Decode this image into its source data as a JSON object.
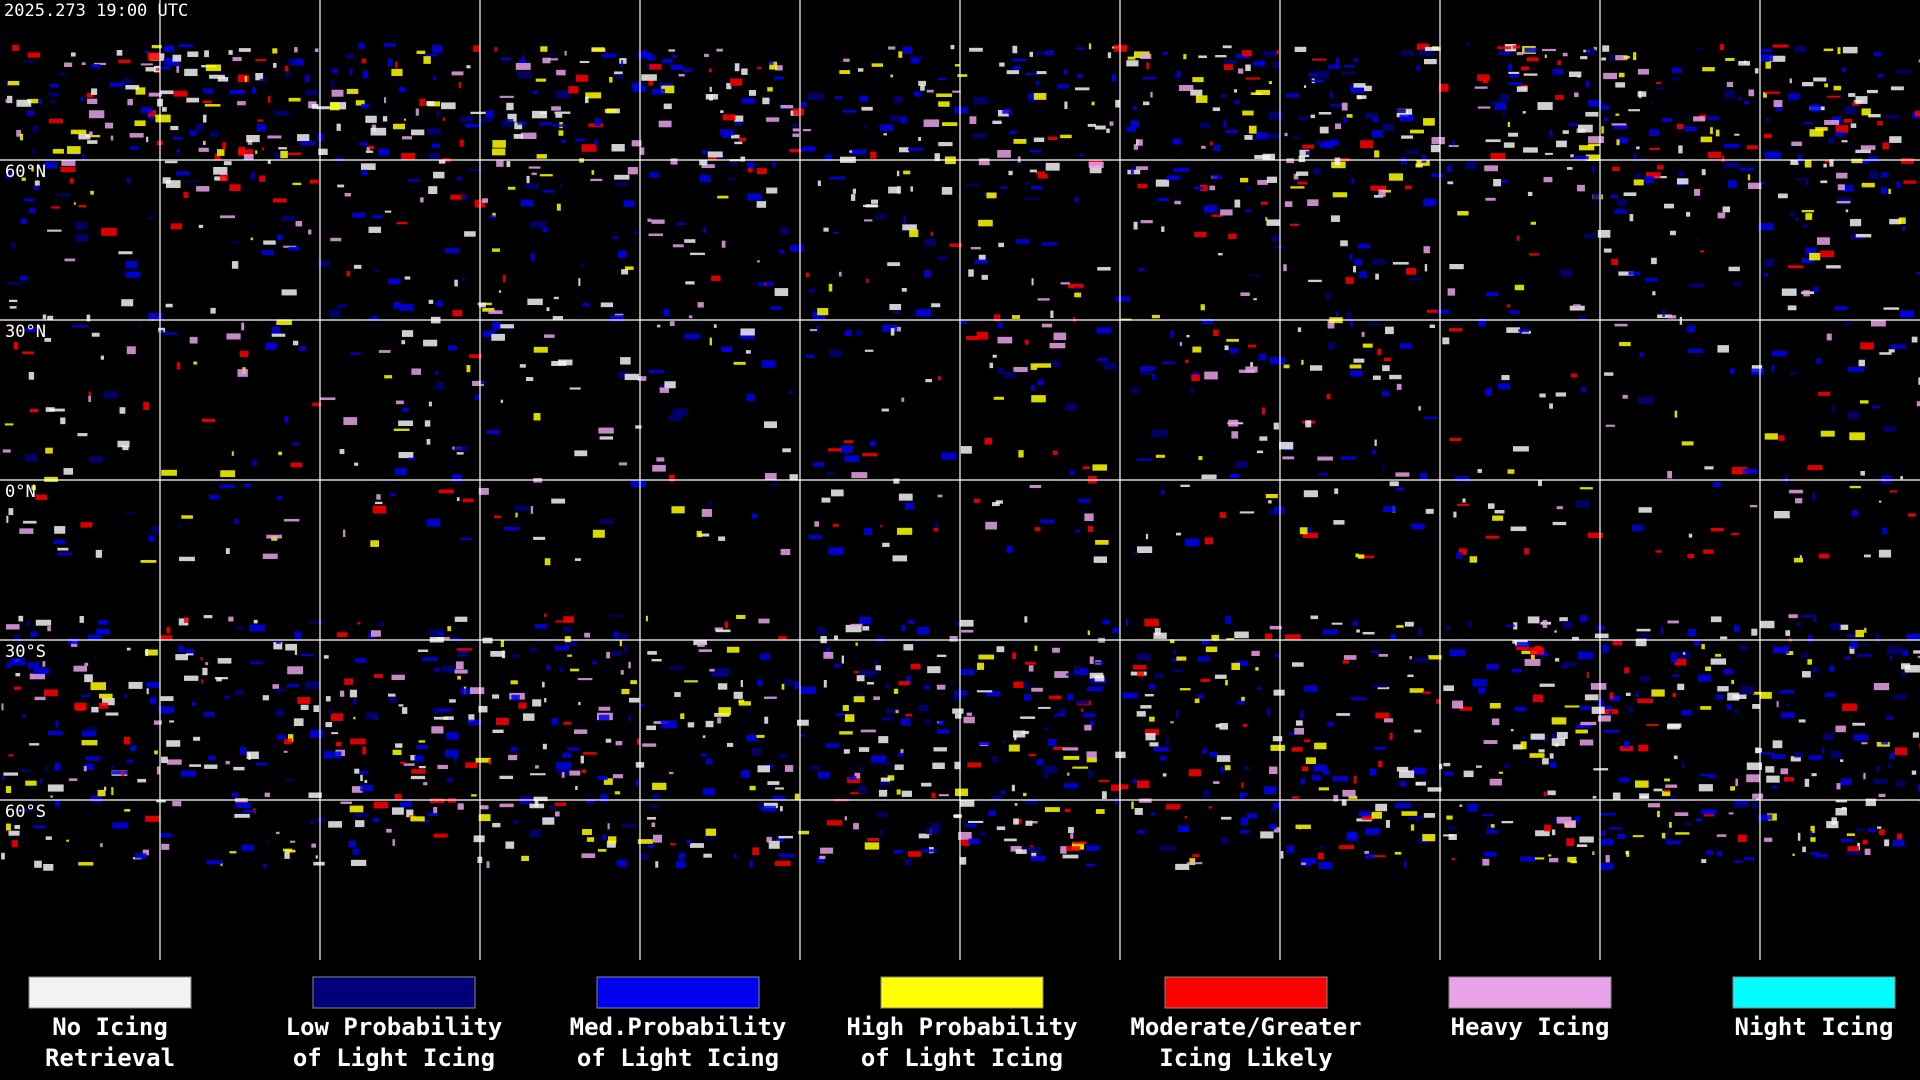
{
  "timestamp": "2025.273 19:00 UTC",
  "map": {
    "lat_lines": [
      {
        "value": 60,
        "label": "60°N"
      },
      {
        "value": 30,
        "label": "30°N"
      },
      {
        "value": 0,
        "label": "0°N"
      },
      {
        "value": -30,
        "label": "30°S"
      },
      {
        "value": -60,
        "label": "60°S"
      }
    ],
    "lon_lines": [
      -150,
      -120,
      -90,
      -60,
      -30,
      0,
      30,
      60,
      90,
      120,
      150
    ]
  },
  "legend": [
    {
      "lines": [
        "No Icing",
        "Retrieval"
      ],
      "color": "#f2f2f2"
    },
    {
      "lines": [
        "Low Probability",
        "of Light Icing"
      ],
      "color": "#00007a"
    },
    {
      "lines": [
        "Med.Probability",
        "of Light Icing"
      ],
      "color": "#0000f0"
    },
    {
      "lines": [
        "High Probability",
        "of Light Icing"
      ],
      "color": "#ffff00"
    },
    {
      "lines": [
        "Moderate/Greater",
        "Icing Likely"
      ],
      "color": "#ff0000"
    },
    {
      "lines": [
        "Heavy Icing"
      ],
      "color": "#e8a2e8"
    },
    {
      "lines": [
        "Night Icing"
      ],
      "color": "#00ffff"
    }
  ]
}
